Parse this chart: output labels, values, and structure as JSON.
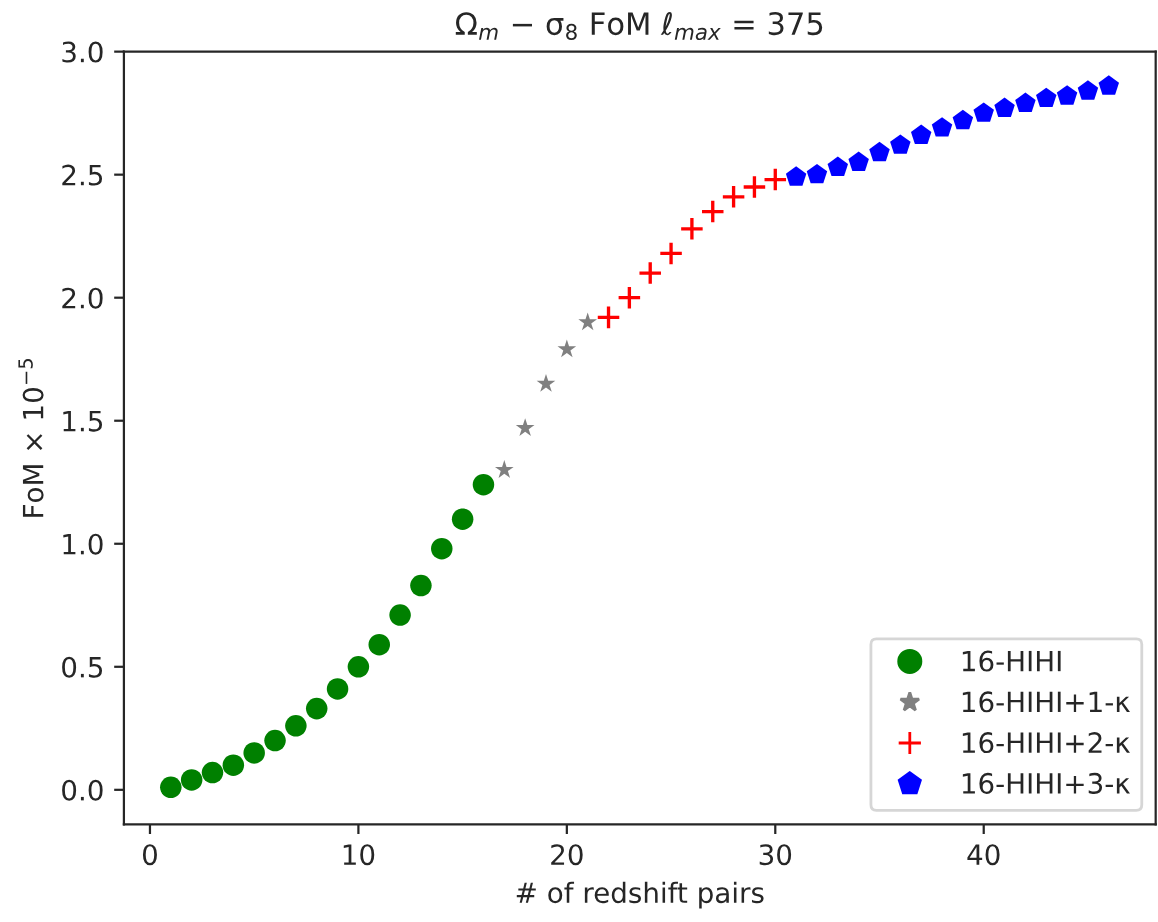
{
  "chart_data": {
    "type": "scatter",
    "title": "Ω$_{m}$ − σ$_{8}$ FoM ℓ$_{max}$ = 375",
    "xlabel": "# of redshift pairs",
    "ylabel": "FoM × 10$^{−5}$",
    "xlim": [
      -1.25,
      48.25
    ],
    "xticks": [
      0,
      10,
      20,
      30,
      40
    ],
    "ylim": [
      -0.14,
      3.0
    ],
    "yticks": [
      {
        "value": 0,
        "label": "0.0"
      },
      {
        "value": 0.5,
        "label": "0.5"
      },
      {
        "value": 1,
        "label": "1.0"
      },
      {
        "value": 1.5,
        "label": "1.5"
      },
      {
        "value": 2,
        "label": "2.0"
      },
      {
        "value": 2.5,
        "label": "2.5"
      },
      {
        "value": 3,
        "label": "3.0"
      }
    ],
    "grid": false,
    "legend": "bottom right",
    "series": [
      {
        "name": "16-HIHI",
        "color": "#008000",
        "marker": "circle",
        "x": [
          1,
          2,
          3,
          4,
          5,
          6,
          7,
          8,
          9,
          10,
          11,
          12,
          13,
          14,
          15,
          16
        ],
        "values": [
          0.01,
          0.04,
          0.07,
          0.1,
          0.15,
          0.2,
          0.26,
          0.33,
          0.41,
          0.5,
          0.59,
          0.71,
          0.83,
          0.98,
          1.1,
          1.24
        ]
      },
      {
        "name": "16-HIHI+1-κ",
        "color": "#808080",
        "marker": "star",
        "x": [
          17,
          18,
          19,
          20,
          21
        ],
        "values": [
          1.3,
          1.47,
          1.65,
          1.79,
          1.9
        ]
      },
      {
        "name": "16-HIHI+2-κ",
        "color": "#ff0000",
        "marker": "cross",
        "x": [
          22,
          23,
          24,
          25,
          26,
          27,
          28,
          29,
          30
        ],
        "values": [
          1.92,
          2.0,
          2.1,
          2.18,
          2.28,
          2.35,
          2.41,
          2.45,
          2.48
        ]
      },
      {
        "name": "16-HIHI+3-κ",
        "color": "#0000ff",
        "x": [
          31,
          32,
          33,
          34,
          35,
          36,
          37,
          38,
          39,
          40,
          41,
          42,
          43,
          44,
          45,
          46
        ],
        "values": [
          2.49,
          2.5,
          2.53,
          2.55,
          2.59,
          2.62,
          2.66,
          2.69,
          2.72,
          2.75,
          2.77,
          2.79,
          2.81,
          2.82,
          2.84,
          2.86
        ]
      }
    ]
  }
}
